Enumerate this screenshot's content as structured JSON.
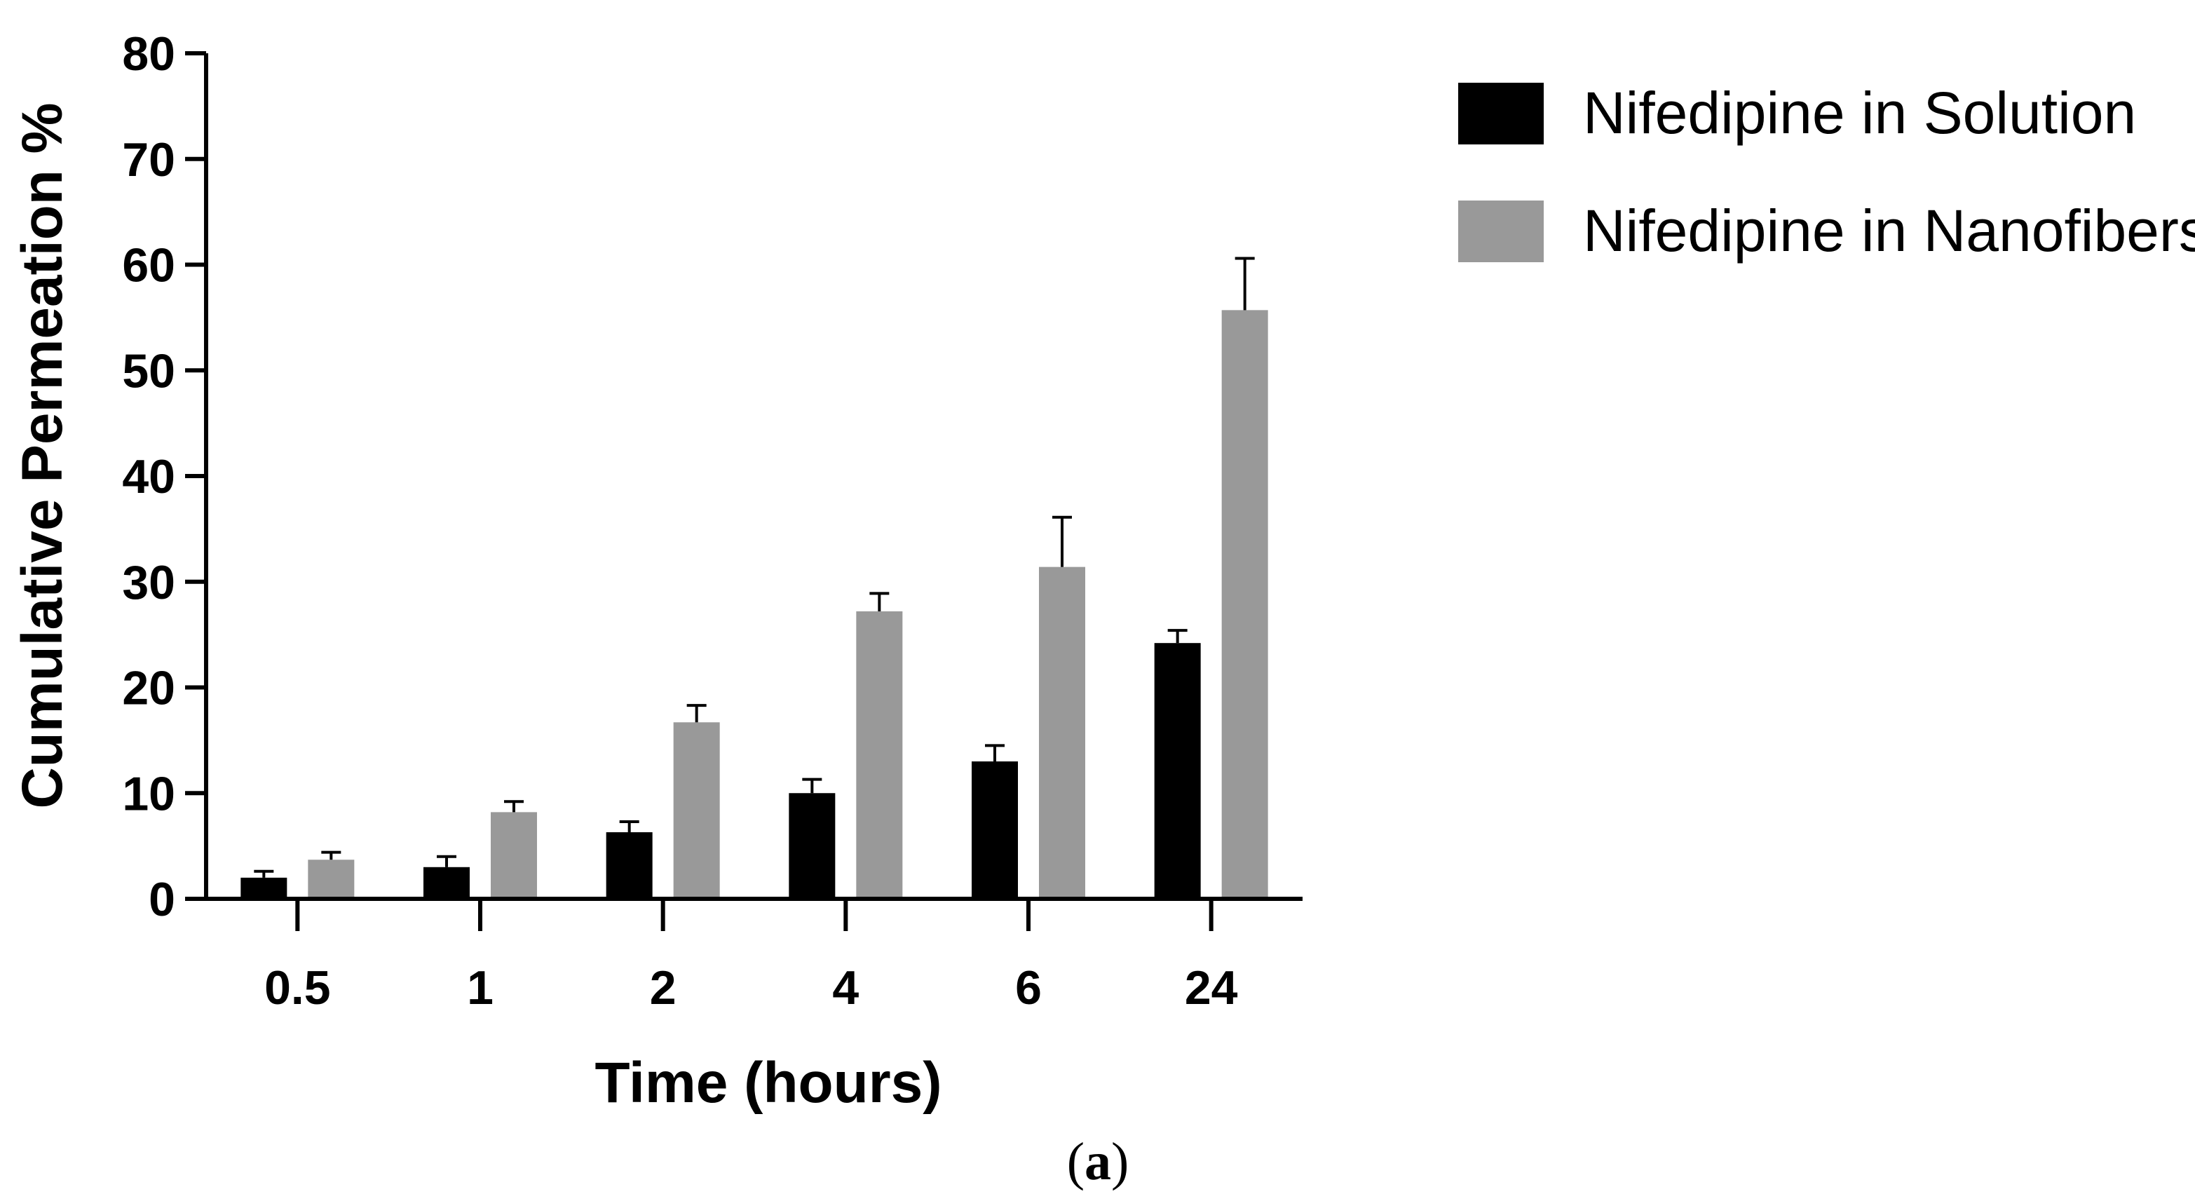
{
  "chart_data": {
    "type": "bar",
    "ylabel": "Cumulative Permeation %",
    "xlabel": "Time (hours)",
    "categories": [
      "0.5",
      "1",
      "2",
      "4",
      "6",
      "24"
    ],
    "ylim": [
      0,
      80
    ],
    "yticks": [
      0,
      10,
      20,
      30,
      40,
      50,
      60,
      70,
      80
    ],
    "grid": false,
    "legend_position": "top-right, outside plot",
    "series": [
      {
        "name": "Nifedipine in Solution",
        "color": "#000000",
        "values": [
          2.0,
          3.0,
          6.3,
          10.0,
          13.0,
          24.2
        ],
        "errors": [
          0.6,
          1.0,
          1.0,
          1.3,
          1.5,
          1.2
        ]
      },
      {
        "name": "Nifedipine in Nanofibers",
        "color": "#999999",
        "values": [
          3.7,
          8.2,
          16.7,
          27.2,
          31.4,
          55.7
        ],
        "errors": [
          0.7,
          1.0,
          1.6,
          1.7,
          4.7,
          4.9
        ]
      }
    ]
  },
  "caption": {
    "open": "(",
    "letter": "a",
    "close": ")"
  }
}
